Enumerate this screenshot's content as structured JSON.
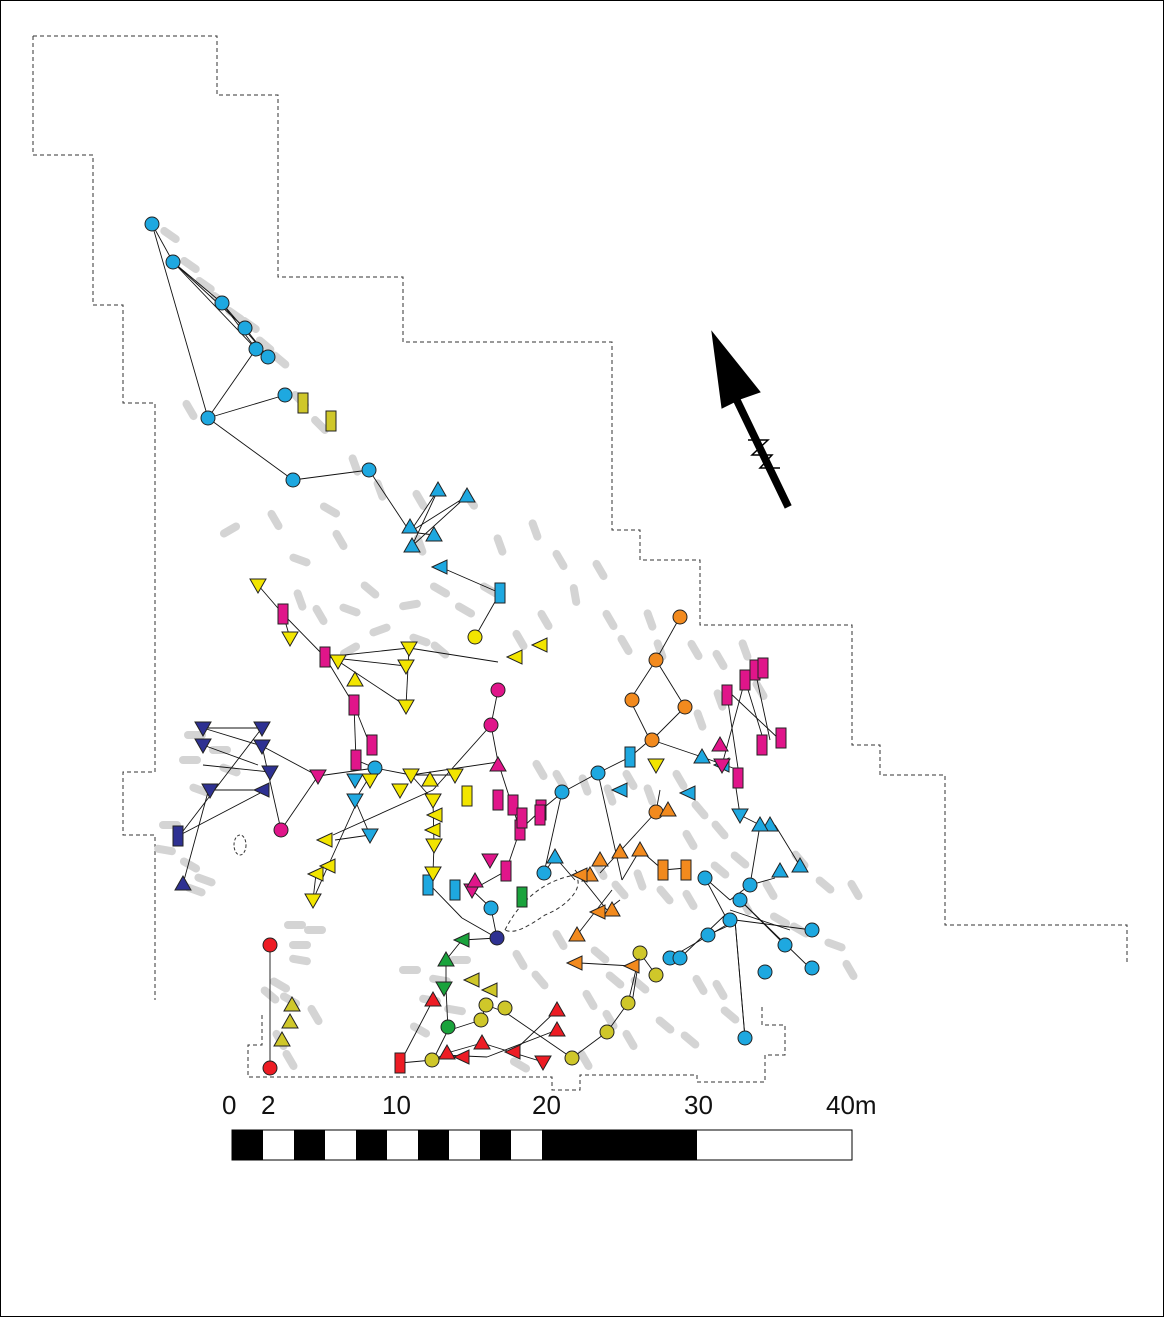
{
  "scale_bar": {
    "labels": [
      "0",
      "2",
      "10",
      "20",
      "30",
      "40m"
    ]
  },
  "north_arrow": {
    "icon": "north-arrow-icon"
  },
  "colors": {
    "light_blue": "#1ea8e0",
    "dark_blue": "#2e3192",
    "magenta": "#e0158a",
    "yellow": "#f2e500",
    "olive": "#cfc72a",
    "orange": "#f28a1e",
    "red": "#ed1c24",
    "green": "#1aa33c",
    "steel_blue": "#1b75bc",
    "feature_grey": "#d4d4d4"
  }
}
